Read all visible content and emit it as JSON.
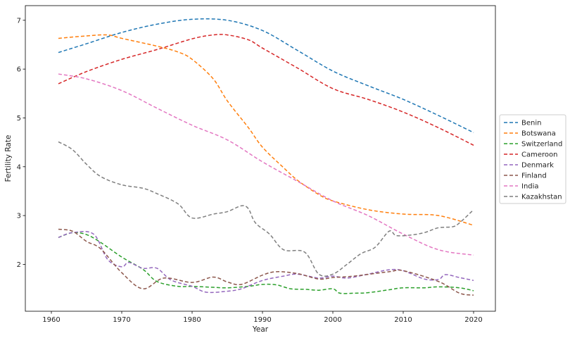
{
  "chart_data": {
    "type": "line",
    "xlabel": "Year",
    "ylabel": "Fertility Rate",
    "xlim": [
      1956.3,
      2023.1
    ],
    "ylim": [
      1.04,
      7.3
    ],
    "x_ticks": [
      1960,
      1970,
      1980,
      1990,
      2000,
      2010,
      2020
    ],
    "y_ticks": [
      2,
      3,
      4,
      5,
      6,
      7
    ],
    "line_style": "dashed",
    "grid": false,
    "legend_position": "right, outside plot, vertically centered",
    "series": [
      {
        "name": "Benin",
        "color": "#1f77b4",
        "points": [
          [
            1961,
            6.34
          ],
          [
            1965,
            6.52
          ],
          [
            1970,
            6.75
          ],
          [
            1975,
            6.92
          ],
          [
            1980,
            7.02
          ],
          [
            1985,
            7.0
          ],
          [
            1990,
            6.79
          ],
          [
            1995,
            6.38
          ],
          [
            2000,
            5.96
          ],
          [
            2005,
            5.66
          ],
          [
            2010,
            5.38
          ],
          [
            2015,
            5.05
          ],
          [
            2020,
            4.7
          ]
        ]
      },
      {
        "name": "Botswana",
        "color": "#ff7f0e",
        "points": [
          [
            1961,
            6.63
          ],
          [
            1965,
            6.68
          ],
          [
            1968,
            6.7
          ],
          [
            1970,
            6.63
          ],
          [
            1975,
            6.47
          ],
          [
            1978,
            6.35
          ],
          [
            1980,
            6.2
          ],
          [
            1983,
            5.8
          ],
          [
            1985,
            5.35
          ],
          [
            1988,
            4.8
          ],
          [
            1990,
            4.4
          ],
          [
            1993,
            3.98
          ],
          [
            1995,
            3.72
          ],
          [
            1998,
            3.43
          ],
          [
            2000,
            3.3
          ],
          [
            2005,
            3.12
          ],
          [
            2010,
            3.03
          ],
          [
            2015,
            3.0
          ],
          [
            2020,
            2.8
          ]
        ]
      },
      {
        "name": "Switzerland",
        "color": "#2ca02c",
        "points": [
          [
            1961,
            2.55
          ],
          [
            1963,
            2.65
          ],
          [
            1965,
            2.61
          ],
          [
            1967,
            2.45
          ],
          [
            1970,
            2.15
          ],
          [
            1973,
            1.9
          ],
          [
            1975,
            1.65
          ],
          [
            1978,
            1.55
          ],
          [
            1980,
            1.55
          ],
          [
            1983,
            1.53
          ],
          [
            1985,
            1.52
          ],
          [
            1988,
            1.55
          ],
          [
            1990,
            1.59
          ],
          [
            1992,
            1.58
          ],
          [
            1994,
            1.5
          ],
          [
            1996,
            1.49
          ],
          [
            1998,
            1.47
          ],
          [
            2000,
            1.5
          ],
          [
            2001,
            1.41
          ],
          [
            2003,
            1.41
          ],
          [
            2005,
            1.42
          ],
          [
            2008,
            1.48
          ],
          [
            2010,
            1.52
          ],
          [
            2013,
            1.52
          ],
          [
            2015,
            1.54
          ],
          [
            2018,
            1.52
          ],
          [
            2020,
            1.46
          ]
        ]
      },
      {
        "name": "Cameroon",
        "color": "#d62728",
        "points": [
          [
            1961,
            5.7
          ],
          [
            1965,
            5.95
          ],
          [
            1970,
            6.2
          ],
          [
            1975,
            6.4
          ],
          [
            1980,
            6.62
          ],
          [
            1983,
            6.7
          ],
          [
            1985,
            6.7
          ],
          [
            1988,
            6.6
          ],
          [
            1990,
            6.43
          ],
          [
            1995,
            6.02
          ],
          [
            2000,
            5.6
          ],
          [
            2005,
            5.38
          ],
          [
            2010,
            5.12
          ],
          [
            2015,
            4.8
          ],
          [
            2020,
            4.44
          ]
        ]
      },
      {
        "name": "Denmark",
        "color": "#9467bd",
        "points": [
          [
            1961,
            2.55
          ],
          [
            1963,
            2.65
          ],
          [
            1966,
            2.62
          ],
          [
            1968,
            2.1
          ],
          [
            1970,
            1.95
          ],
          [
            1971,
            2.04
          ],
          [
            1973,
            1.92
          ],
          [
            1975,
            1.92
          ],
          [
            1977,
            1.68
          ],
          [
            1980,
            1.55
          ],
          [
            1982,
            1.43
          ],
          [
            1985,
            1.45
          ],
          [
            1987,
            1.5
          ],
          [
            1990,
            1.67
          ],
          [
            1993,
            1.76
          ],
          [
            1995,
            1.8
          ],
          [
            1998,
            1.72
          ],
          [
            2000,
            1.76
          ],
          [
            2002,
            1.72
          ],
          [
            2005,
            1.8
          ],
          [
            2008,
            1.89
          ],
          [
            2010,
            1.87
          ],
          [
            2013,
            1.7
          ],
          [
            2015,
            1.69
          ],
          [
            2016,
            1.79
          ],
          [
            2018,
            1.73
          ],
          [
            2020,
            1.67
          ]
        ]
      },
      {
        "name": "Finland",
        "color": "#8c564b",
        "points": [
          [
            1961,
            2.72
          ],
          [
            1963,
            2.68
          ],
          [
            1965,
            2.47
          ],
          [
            1967,
            2.32
          ],
          [
            1970,
            1.83
          ],
          [
            1973,
            1.5
          ],
          [
            1976,
            1.72
          ],
          [
            1980,
            1.63
          ],
          [
            1983,
            1.74
          ],
          [
            1985,
            1.64
          ],
          [
            1987,
            1.59
          ],
          [
            1990,
            1.78
          ],
          [
            1992,
            1.85
          ],
          [
            1995,
            1.81
          ],
          [
            1998,
            1.7
          ],
          [
            2000,
            1.73
          ],
          [
            2003,
            1.76
          ],
          [
            2008,
            1.85
          ],
          [
            2010,
            1.87
          ],
          [
            2015,
            1.65
          ],
          [
            2018,
            1.41
          ],
          [
            2020,
            1.37
          ]
        ]
      },
      {
        "name": "India",
        "color": "#e377c2",
        "points": [
          [
            1961,
            5.9
          ],
          [
            1965,
            5.8
          ],
          [
            1970,
            5.56
          ],
          [
            1975,
            5.2
          ],
          [
            1980,
            4.85
          ],
          [
            1985,
            4.55
          ],
          [
            1990,
            4.1
          ],
          [
            1995,
            3.7
          ],
          [
            2000,
            3.3
          ],
          [
            2005,
            3.0
          ],
          [
            2010,
            2.62
          ],
          [
            2015,
            2.3
          ],
          [
            2020,
            2.19
          ]
        ]
      },
      {
        "name": "Kazakhstan",
        "color": "#7f7f7f",
        "points": [
          [
            1961,
            4.51
          ],
          [
            1963,
            4.35
          ],
          [
            1965,
            4.05
          ],
          [
            1967,
            3.8
          ],
          [
            1970,
            3.63
          ],
          [
            1973,
            3.56
          ],
          [
            1975,
            3.45
          ],
          [
            1978,
            3.24
          ],
          [
            1980,
            2.95
          ],
          [
            1983,
            3.03
          ],
          [
            1985,
            3.08
          ],
          [
            1987,
            3.2
          ],
          [
            1988,
            3.14
          ],
          [
            1989,
            2.85
          ],
          [
            1991,
            2.62
          ],
          [
            1993,
            2.3
          ],
          [
            1996,
            2.25
          ],
          [
            1998,
            1.8
          ],
          [
            2000,
            1.8
          ],
          [
            2002,
            2.0
          ],
          [
            2004,
            2.22
          ],
          [
            2006,
            2.35
          ],
          [
            2008,
            2.68
          ],
          [
            2009,
            2.59
          ],
          [
            2011,
            2.6
          ],
          [
            2013,
            2.65
          ],
          [
            2015,
            2.75
          ],
          [
            2017,
            2.77
          ],
          [
            2018,
            2.85
          ],
          [
            2020,
            3.12
          ]
        ]
      }
    ]
  }
}
